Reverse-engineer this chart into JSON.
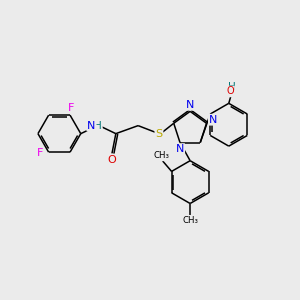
{
  "background_color": "#ebebeb",
  "figsize": [
    3.0,
    3.0
  ],
  "dpi": 100,
  "atom_colors": {
    "C": "#000000",
    "N": "#0000ee",
    "O": "#dd0000",
    "S": "#bbaa00",
    "F": "#ee00ee",
    "H": "#007777"
  },
  "bond_color": "#000000",
  "bond_width": 1.1,
  "font_size_atom": 8.0
}
